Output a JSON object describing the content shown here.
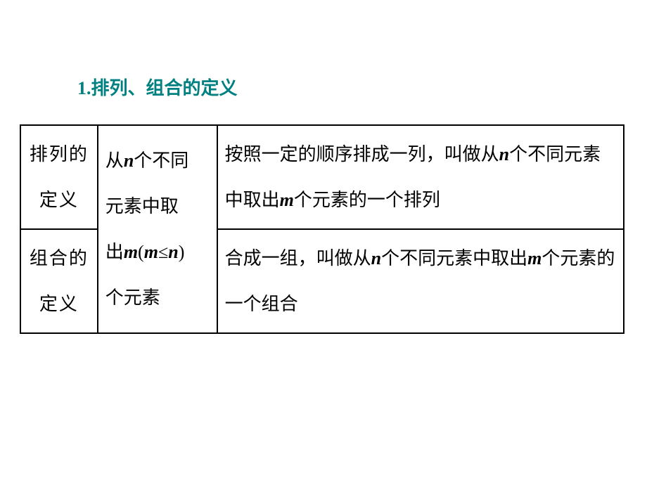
{
  "heading": "1.排列、组合的定义",
  "table": {
    "row1": {
      "col1": "排列的定义",
      "col3_prefix": "按照一定的顺序排成一列，叫做从",
      "col3_var1": "n",
      "col3_mid": "个不同元素中取出",
      "col3_var2": "m",
      "col3_suffix": "个元素的一个排列"
    },
    "merged_col2": {
      "line1_prefix": "从",
      "line1_var": "n",
      "line1_suffix": "个不同",
      "line2": "元素中取",
      "line3_prefix": "出",
      "line3_var1": "m",
      "line3_paren_open": "(",
      "line3_var2": "m",
      "line3_op": "≤",
      "line3_var3": "n",
      "line3_paren_close": ")",
      "line4": "个元素"
    },
    "row2": {
      "col1": "组合的定义",
      "col3_prefix": "合成一组，叫做从",
      "col3_var1": "n",
      "col3_mid": "个不同元素中取出",
      "col3_var2": "m",
      "col3_suffix": "个元素的一个组合"
    }
  },
  "colors": {
    "heading": "#008080",
    "text": "#000000",
    "border": "#000000",
    "background": "#ffffff"
  },
  "typography": {
    "heading_fontsize": 26,
    "cell_fontsize": 26,
    "font_family": "SimSun"
  }
}
